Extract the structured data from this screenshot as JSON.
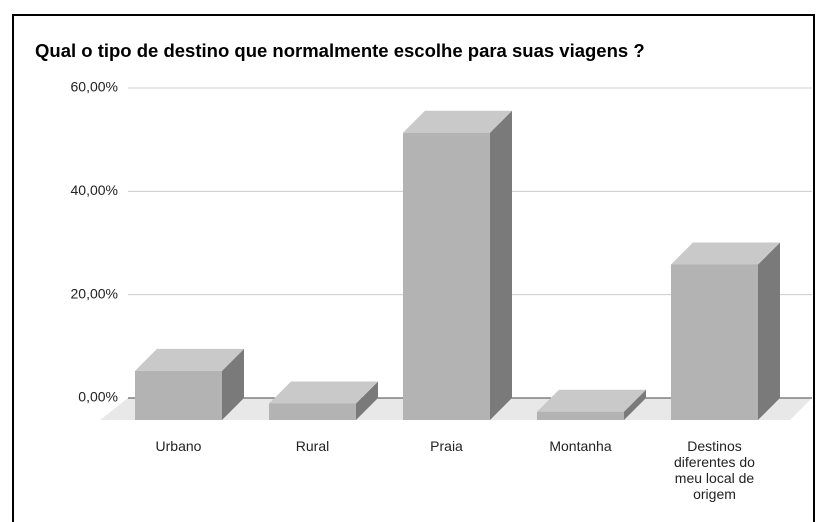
{
  "chart_data": {
    "type": "bar3d",
    "title": "Qual o tipo de destino que normalmente escolhe para suas viagens ?",
    "categories": [
      "Urbano",
      "Rural",
      "Praia",
      "Montanha",
      "Destinos diferentes do meu local de origem"
    ],
    "values": [
      9.5,
      3.2,
      55.6,
      1.6,
      30.1
    ],
    "color": "#b3b3b3",
    "ylim": [
      0,
      60
    ],
    "yticks": [
      {
        "value": 0,
        "label": "0,00%"
      },
      {
        "value": 20,
        "label": "20,00%"
      },
      {
        "value": 40,
        "label": "40,00%"
      },
      {
        "value": 60,
        "label": "60,00%"
      }
    ],
    "grid": true
  }
}
